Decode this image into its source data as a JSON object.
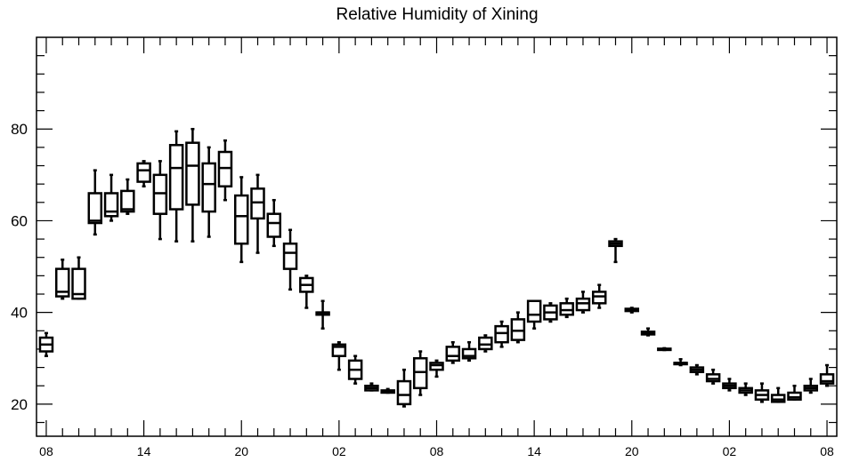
{
  "chart_data": {
    "type": "box",
    "title": "Relative Humidity of Xining",
    "xlabel": "",
    "ylabel": "",
    "ylim": [
      13,
      100
    ],
    "xlim": [
      -0.6,
      48.6
    ],
    "grid": false,
    "legend": "none",
    "y_ticks": [
      20,
      40,
      60,
      80
    ],
    "x_tick_labels": [
      {
        "x": 0,
        "label": "08"
      },
      {
        "x": 6,
        "label": "14"
      },
      {
        "x": 12,
        "label": "20"
      },
      {
        "x": 18,
        "label": "02"
      },
      {
        "x": 24,
        "label": "08"
      },
      {
        "x": 30,
        "label": "14"
      },
      {
        "x": 36,
        "label": "20"
      },
      {
        "x": 42,
        "label": "02"
      },
      {
        "x": 48,
        "label": "08"
      }
    ],
    "boxes": [
      {
        "x": 0,
        "min": 30.5,
        "q1": 31.5,
        "median": 33.0,
        "q3": 34.5,
        "max": 35.5
      },
      {
        "x": 1,
        "min": 43.0,
        "q1": 43.5,
        "median": 44.5,
        "q3": 49.5,
        "max": 51.5
      },
      {
        "x": 2,
        "min": 43.0,
        "q1": 43.0,
        "median": 44.0,
        "q3": 49.5,
        "max": 52.0
      },
      {
        "x": 3,
        "min": 57.0,
        "q1": 59.5,
        "median": 60.0,
        "q3": 66.0,
        "max": 71.0
      },
      {
        "x": 4,
        "min": 60.0,
        "q1": 61.0,
        "median": 62.0,
        "q3": 66.0,
        "max": 70.0
      },
      {
        "x": 5,
        "min": 61.5,
        "q1": 62.0,
        "median": 62.5,
        "q3": 66.5,
        "max": 69.0
      },
      {
        "x": 6,
        "min": 67.5,
        "q1": 68.5,
        "median": 71.0,
        "q3": 72.5,
        "max": 73.0
      },
      {
        "x": 7,
        "min": 56.0,
        "q1": 61.5,
        "median": 66.0,
        "q3": 70.0,
        "max": 73.0
      },
      {
        "x": 8,
        "min": 55.5,
        "q1": 62.5,
        "median": 71.5,
        "q3": 76.5,
        "max": 79.5
      },
      {
        "x": 9,
        "min": 55.5,
        "q1": 63.5,
        "median": 72.0,
        "q3": 77.0,
        "max": 80.0
      },
      {
        "x": 10,
        "min": 56.5,
        "q1": 62.0,
        "median": 68.0,
        "q3": 72.5,
        "max": 76.0
      },
      {
        "x": 11,
        "min": 64.5,
        "q1": 67.5,
        "median": 71.5,
        "q3": 75.0,
        "max": 77.5
      },
      {
        "x": 12,
        "min": 51.0,
        "q1": 55.0,
        "median": 61.0,
        "q3": 65.5,
        "max": 69.5
      },
      {
        "x": 13,
        "min": 53.0,
        "q1": 60.5,
        "median": 64.0,
        "q3": 67.0,
        "max": 70.0
      },
      {
        "x": 14,
        "min": 54.5,
        "q1": 56.5,
        "median": 59.5,
        "q3": 61.5,
        "max": 64.5
      },
      {
        "x": 15,
        "min": 45.0,
        "q1": 49.5,
        "median": 53.0,
        "q3": 55.0,
        "max": 58.0
      },
      {
        "x": 16,
        "min": 41.0,
        "q1": 44.5,
        "median": 46.0,
        "q3": 47.5,
        "max": 48.0
      },
      {
        "x": 17,
        "min": 36.5,
        "q1": 39.5,
        "median": 40.0,
        "q3": 40.0,
        "max": 42.5
      },
      {
        "x": 18,
        "min": 27.5,
        "q1": 30.5,
        "median": 32.5,
        "q3": 33.0,
        "max": 33.5
      },
      {
        "x": 19,
        "min": 24.5,
        "q1": 25.5,
        "median": 27.5,
        "q3": 29.5,
        "max": 30.5
      },
      {
        "x": 20,
        "min": 23.0,
        "q1": 23.0,
        "median": 23.5,
        "q3": 24.0,
        "max": 24.5
      },
      {
        "x": 21,
        "min": 22.5,
        "q1": 22.5,
        "median": 22.8,
        "q3": 23.0,
        "max": 23.3
      },
      {
        "x": 22,
        "min": 19.5,
        "q1": 20.0,
        "median": 22.0,
        "q3": 25.0,
        "max": 27.5
      },
      {
        "x": 23,
        "min": 22.0,
        "q1": 23.5,
        "median": 27.0,
        "q3": 30.0,
        "max": 31.5
      },
      {
        "x": 24,
        "min": 26.0,
        "q1": 27.5,
        "median": 28.5,
        "q3": 29.0,
        "max": 29.5
      },
      {
        "x": 25,
        "min": 29.0,
        "q1": 29.5,
        "median": 30.5,
        "q3": 32.5,
        "max": 33.5
      },
      {
        "x": 26,
        "min": 29.5,
        "q1": 30.0,
        "median": 30.5,
        "q3": 32.0,
        "max": 33.5
      },
      {
        "x": 27,
        "min": 31.5,
        "q1": 32.0,
        "median": 33.0,
        "q3": 34.5,
        "max": 35.0
      },
      {
        "x": 28,
        "min": 32.5,
        "q1": 33.5,
        "median": 35.5,
        "q3": 37.0,
        "max": 38.0
      },
      {
        "x": 29,
        "min": 33.5,
        "q1": 34.0,
        "median": 36.0,
        "q3": 38.5,
        "max": 40.0
      },
      {
        "x": 30,
        "min": 36.5,
        "q1": 38.0,
        "median": 39.5,
        "q3": 42.5,
        "max": 42.5
      },
      {
        "x": 31,
        "min": 38.0,
        "q1": 38.5,
        "median": 40.0,
        "q3": 41.5,
        "max": 42.0
      },
      {
        "x": 32,
        "min": 39.0,
        "q1": 39.5,
        "median": 40.5,
        "q3": 42.0,
        "max": 43.0
      },
      {
        "x": 33,
        "min": 40.0,
        "q1": 40.5,
        "median": 42.0,
        "q3": 43.0,
        "max": 44.5
      },
      {
        "x": 34,
        "min": 41.0,
        "q1": 42.0,
        "median": 43.5,
        "q3": 44.5,
        "max": 46.0
      },
      {
        "x": 35,
        "min": 51.0,
        "q1": 54.5,
        "median": 55.0,
        "q3": 55.5,
        "max": 56.0
      },
      {
        "x": 36,
        "min": 40.0,
        "q1": 40.3,
        "median": 40.5,
        "q3": 40.8,
        "max": 41.0
      },
      {
        "x": 37,
        "min": 35.0,
        "q1": 35.2,
        "median": 35.5,
        "q3": 35.8,
        "max": 36.5
      },
      {
        "x": 38,
        "min": 31.8,
        "q1": 31.9,
        "median": 32.0,
        "q3": 32.1,
        "max": 32.2
      },
      {
        "x": 39,
        "min": 28.5,
        "q1": 28.7,
        "median": 29.0,
        "q3": 29.0,
        "max": 29.8
      },
      {
        "x": 40,
        "min": 26.5,
        "q1": 27.0,
        "median": 27.5,
        "q3": 28.0,
        "max": 28.5
      },
      {
        "x": 41,
        "min": 24.5,
        "q1": 25.0,
        "median": 25.5,
        "q3": 26.5,
        "max": 27.5
      },
      {
        "x": 42,
        "min": 23.0,
        "q1": 23.5,
        "median": 24.0,
        "q3": 24.5,
        "max": 25.5
      },
      {
        "x": 43,
        "min": 22.0,
        "q1": 22.5,
        "median": 23.0,
        "q3": 23.5,
        "max": 24.5
      },
      {
        "x": 44,
        "min": 20.5,
        "q1": 21.0,
        "median": 22.0,
        "q3": 23.0,
        "max": 24.5
      },
      {
        "x": 45,
        "min": 20.5,
        "q1": 20.5,
        "median": 21.0,
        "q3": 22.0,
        "max": 23.5
      },
      {
        "x": 46,
        "min": 21.0,
        "q1": 21.0,
        "median": 21.5,
        "q3": 22.5,
        "max": 24.0
      },
      {
        "x": 47,
        "min": 22.5,
        "q1": 23.0,
        "median": 23.5,
        "q3": 24.0,
        "max": 25.5
      },
      {
        "x": 48,
        "min": 24.0,
        "q1": 24.5,
        "median": 25.0,
        "q3": 26.5,
        "max": 28.5
      }
    ]
  }
}
